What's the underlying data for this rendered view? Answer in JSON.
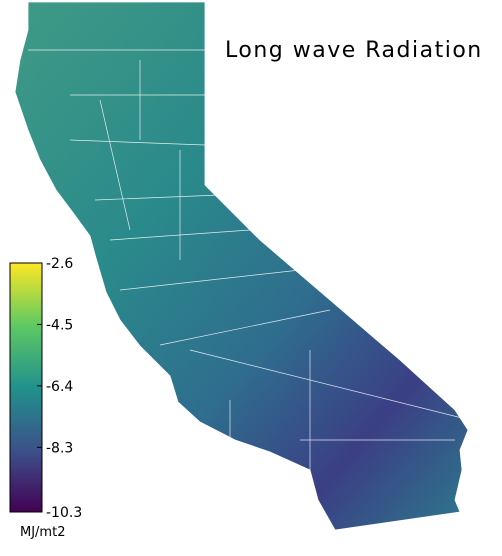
{
  "title": "Long wave Radiation",
  "colorbar": {
    "label": "MJ/mt2",
    "range": [
      -10.3,
      -2.6
    ],
    "ticks": [
      -2.6,
      -4.5,
      -6.4,
      -8.3,
      -10.3
    ],
    "colors": [
      "#440154",
      "#3b528b",
      "#21918c",
      "#5ec962",
      "#fde725"
    ]
  }
}
